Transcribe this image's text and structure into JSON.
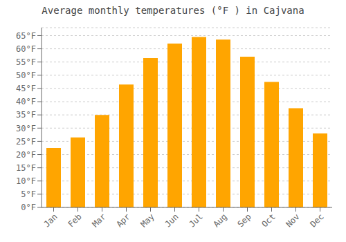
{
  "chart_data": {
    "type": "bar",
    "title": "Average monthly temperatures (°F ) in Cajvana",
    "categories": [
      "Jan",
      "Feb",
      "Mar",
      "Apr",
      "May",
      "Jun",
      "Jul",
      "Aug",
      "Sep",
      "Oct",
      "Nov",
      "Dec"
    ],
    "values": [
      22.5,
      26.5,
      35.0,
      46.5,
      56.5,
      62.0,
      64.5,
      63.5,
      57.0,
      47.5,
      37.5,
      28.0
    ],
    "color": "#FFA500",
    "ylim": [
      0,
      68
    ],
    "yticks": [
      {
        "value": 0,
        "label": "0°F"
      },
      {
        "value": 5,
        "label": "5°F"
      },
      {
        "value": 10,
        "label": "10°F"
      },
      {
        "value": 15,
        "label": "15°F"
      },
      {
        "value": 20,
        "label": "20°F"
      },
      {
        "value": 25,
        "label": "25°F"
      },
      {
        "value": 30,
        "label": "30°F"
      },
      {
        "value": 35,
        "label": "35°F"
      },
      {
        "value": 40,
        "label": "40°F"
      },
      {
        "value": 45,
        "label": "45°F"
      },
      {
        "value": 50,
        "label": "50°F"
      },
      {
        "value": 55,
        "label": "55°F"
      },
      {
        "value": 60,
        "label": "60°F"
      },
      {
        "value": 65,
        "label": "65°F"
      }
    ],
    "grid": true
  }
}
